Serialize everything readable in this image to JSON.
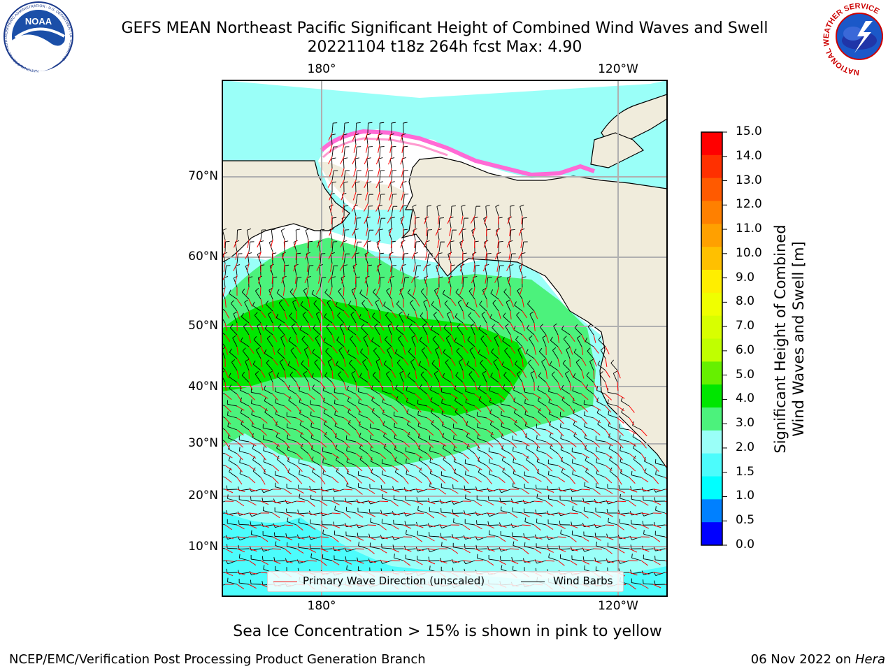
{
  "title": {
    "line1": "GEFS MEAN Northeast Pacific Significant Height of Combined Wind Waves and Swell",
    "line2": "20221104 t18z 264h fcst   Max: 4.90"
  },
  "logos": {
    "noaa": {
      "text": "NOAA",
      "ring_text": "NATIONAL OCEANIC AND ATMOSPHERIC ADMINISTRATION · U.S. DEPARTMENT OF COMMERCE"
    },
    "nws": {
      "ring_text": "NATIONAL WEATHER SERVICE"
    }
  },
  "map": {
    "lat_labels": [
      "70°N",
      "60°N",
      "50°N",
      "40°N",
      "30°N",
      "20°N",
      "10°N"
    ],
    "lon_labels_top": [
      "180°",
      "120°W"
    ],
    "lon_labels_bottom": [
      "180°",
      "120°W"
    ],
    "legend": {
      "wave_label": "Primary Wave Direction (unscaled)",
      "barb_label": "Wind Barbs",
      "wave_color": "#ff0000",
      "barb_color": "#000000"
    },
    "colors": {
      "land": "#f0ecdc",
      "grid": "#b0b0b0",
      "ice": "#ff6ad5"
    }
  },
  "colorbar": {
    "label_line1": "Significant Height of Combined",
    "label_line2": "Wind Waves and Swell [m]",
    "ticks": [
      "15.0",
      "14.0",
      "13.0",
      "12.0",
      "11.0",
      "10.0",
      "9.0",
      "8.0",
      "7.0",
      "6.0",
      "5.0",
      "4.0",
      "3.0",
      "2.0",
      "1.5",
      "1.0",
      "0.5",
      "0.0"
    ],
    "colors_top_to_bottom": [
      "#ff0000",
      "#ff3000",
      "#ff5a00",
      "#ff8000",
      "#ffa000",
      "#ffc000",
      "#ffee00",
      "#f0ff00",
      "#d8ff00",
      "#c0ff00",
      "#66f000",
      "#00e600",
      "#4cf27c",
      "#9afff8",
      "#4cfcfc",
      "#00ffff",
      "#0080ff",
      "#0000ff"
    ]
  },
  "caption": "Sea Ice Concentration > 15% is shown in pink to yellow",
  "footer": {
    "left": "NCEP/EMC/Verification Post Processing Product Generation Branch",
    "right_prefix": "06 Nov 2022 on ",
    "right_host": "Hera"
  }
}
